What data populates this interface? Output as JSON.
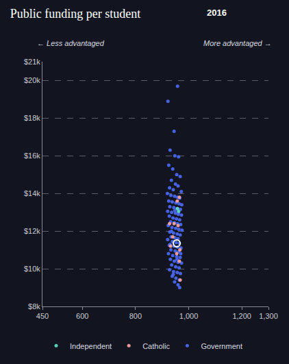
{
  "chart_data": {
    "type": "scatter",
    "title": "Public funding per student",
    "subtitle": "2016",
    "annotations": [
      {
        "text": "← Less advantaged"
      },
      {
        "text": "More advantaged →"
      }
    ],
    "xlim": [
      450,
      1300
    ],
    "xticks": [
      450,
      600,
      800,
      {
        "value": 1000,
        "label": "1,000"
      },
      {
        "value": 1200,
        "label": "1,200"
      },
      {
        "value": 1300,
        "label": "1,300"
      }
    ],
    "ylim": [
      8000,
      21000
    ],
    "yticks": [
      {
        "value": 8000,
        "label": "$8k"
      },
      {
        "value": 10000,
        "label": "$10k"
      },
      {
        "value": 12000,
        "label": "$12k"
      },
      {
        "value": 14000,
        "label": "$14k"
      },
      {
        "value": 16000,
        "label": "$16k"
      },
      {
        "value": 18000,
        "label": "$18k"
      },
      {
        "value": 20000,
        "label": "$20k"
      },
      {
        "value": 21000,
        "label": "$21k"
      }
    ],
    "grid": true,
    "legend": "bottom",
    "series": [
      {
        "name": "Government",
        "color": "#4a67f0",
        "marker": "circle",
        "x": [
          922,
          958,
          945,
          930,
          948,
          962,
          925,
          940,
          955,
          968,
          935,
          950,
          960,
          928,
          942,
          972,
          920,
          933,
          947,
          958,
          966,
          925,
          938,
          952,
          964,
          974,
          929,
          944,
          956,
          969,
          921,
          936,
          950,
          961,
          973,
          927,
          941,
          954,
          966,
          932,
          946,
          958,
          970,
          923,
          937,
          951,
          963,
          975,
          929,
          943,
          957,
          968,
          934,
          948,
          960,
          921,
          939,
          953,
          965,
          927,
          945,
          958,
          971,
          933,
          949,
          962,
          924,
          940,
          955,
          968,
          931,
          946,
          960,
          973,
          936,
          951,
          964,
          928,
          943,
          957,
          969,
          938,
          952,
          965,
          947,
          960,
          966,
          942,
          956,
          935,
          962,
          948,
          930,
          970
        ],
        "values": [
          18900,
          19700,
          17300,
          16300,
          16000,
          15950,
          15500,
          15300,
          15000,
          14900,
          14700,
          14500,
          14400,
          14300,
          14200,
          14100,
          14000,
          13900,
          13850,
          13800,
          13750,
          13600,
          13550,
          13500,
          13450,
          13400,
          13300,
          13250,
          13200,
          13150,
          13050,
          13000,
          12950,
          12900,
          12850,
          12800,
          12700,
          12650,
          12600,
          12500,
          12450,
          12400,
          12350,
          12300,
          12200,
          12150,
          12100,
          12050,
          11950,
          11900,
          11850,
          11800,
          11700,
          11650,
          11600,
          11550,
          11450,
          11400,
          11350,
          11250,
          11200,
          11150,
          11100,
          11000,
          10950,
          10900,
          10800,
          10700,
          10650,
          10600,
          10500,
          10400,
          10350,
          10300,
          10200,
          10100,
          10050,
          9950,
          9850,
          9800,
          9750,
          9600,
          9500,
          9400,
          9300,
          9150,
          9000,
          9700,
          10500,
          12000,
          13000,
          13100,
          11300,
          10800
        ]
      },
      {
        "name": "Catholic",
        "color": "#f4a0a0",
        "marker": "circle",
        "x": [
          965,
          957,
          945,
          928,
          960,
          932,
          967,
          955,
          965,
          968,
          940
        ],
        "values": [
          13800,
          13600,
          12400,
          12400,
          12300,
          11200,
          11000,
          10800,
          10400,
          9400,
          11700
        ]
      },
      {
        "name": "Independent",
        "color": "#5fd9c0",
        "marker": "circle",
        "x": [
          962,
          958
        ],
        "values": [
          13050,
          13200
        ]
      },
      {
        "color": "#ffffff",
        "marker": "ring",
        "x": [
          955
        ],
        "values": [
          11350
        ]
      }
    ]
  }
}
